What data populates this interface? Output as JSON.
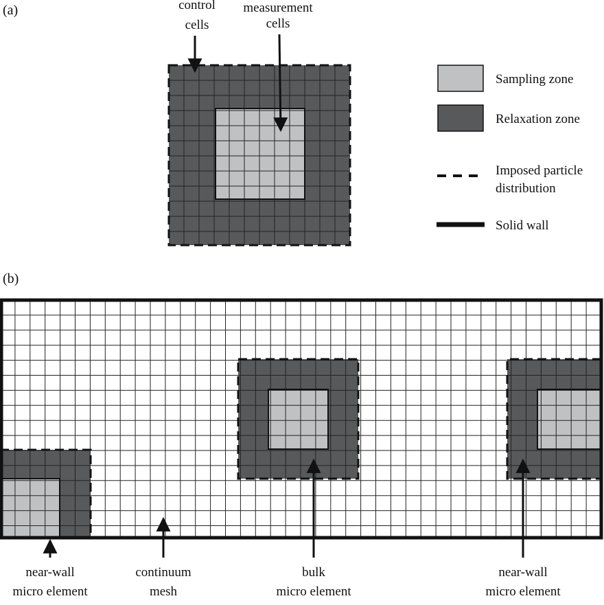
{
  "panel_a": {
    "label": "(a)",
    "annotations": [
      {
        "id": "control-cells",
        "lines": [
          "control",
          "cells"
        ]
      },
      {
        "id": "measurement-cells",
        "lines": [
          "measurement",
          "cells"
        ]
      }
    ]
  },
  "legend": {
    "items": [
      {
        "id": "sampling-zone",
        "label": "Sampling zone",
        "swatch": "fill",
        "color": "#c0c1c3"
      },
      {
        "id": "relaxation-zone",
        "label": "Relaxation zone",
        "swatch": "fill",
        "color": "#58595b"
      },
      {
        "id": "imposed-particle-distribution",
        "label": "Imposed particle\ndistribution",
        "swatch": "dashed",
        "color": "#111111"
      },
      {
        "id": "solid-wall",
        "label": "Solid wall",
        "swatch": "thick",
        "color": "#111111"
      }
    ]
  },
  "panel_b": {
    "label": "(b)",
    "annotations": [
      {
        "id": "near-wall-micro-element-left",
        "lines": [
          "near-wall",
          "micro element"
        ]
      },
      {
        "id": "continuum-mesh",
        "lines": [
          "continuum",
          "mesh"
        ]
      },
      {
        "id": "bulk-micro-element",
        "lines": [
          "bulk",
          "micro element"
        ]
      },
      {
        "id": "near-wall-micro-element-right",
        "lines": [
          "near-wall",
          "micro element"
        ]
      }
    ]
  },
  "colors": {
    "sampling": "#c0c1c3",
    "relaxation": "#58595b",
    "line": "#111111",
    "grid": "#222222"
  }
}
